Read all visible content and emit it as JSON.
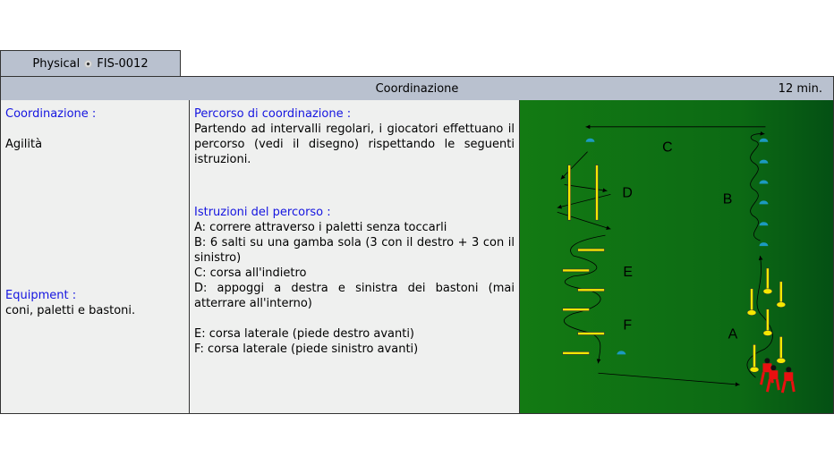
{
  "tab": {
    "label_left": "Physical",
    "label_right": "FIS-0012",
    "icon": "soccer-ball-icon"
  },
  "header": {
    "title": "Coordinazione",
    "duration": "12 min."
  },
  "left": {
    "heading": "Coordinazione :",
    "value": "Agilità",
    "equipment_heading": "Equipment :",
    "equipment_value": "coni, paletti e bastoni."
  },
  "middle": {
    "heading": "Percorso di coordinazione :",
    "intro": "Partendo ad intervalli regolari, i giocatori effettuano il percorso (vedi il disegno) rispettando le seguenti istruzioni.",
    "instructions_heading": "Istruzioni del percorso :",
    "lines": [
      "A: correre attraverso i paletti senza toccarli",
      "B: 6 salti su una gamba sola (3 con il destro + 3 con il sinistro)",
      "C: corsa all'indietro",
      "D: appoggi a destra e sinistra dei bastoni (mai atterrare all'interno)"
    ],
    "lines2": [
      "E: corsa laterale (piede destro avanti)",
      "F: corsa laterale (piede sinistro avanti)"
    ]
  },
  "diagram": {
    "labels": {
      "A": "A",
      "B": "B",
      "C": "C",
      "D": "D",
      "E": "E",
      "F": "F"
    },
    "field_color": "#137a13",
    "cone_color": "#1c9ac0",
    "pole_color": "#f5e800",
    "player_color": "#e81010"
  }
}
